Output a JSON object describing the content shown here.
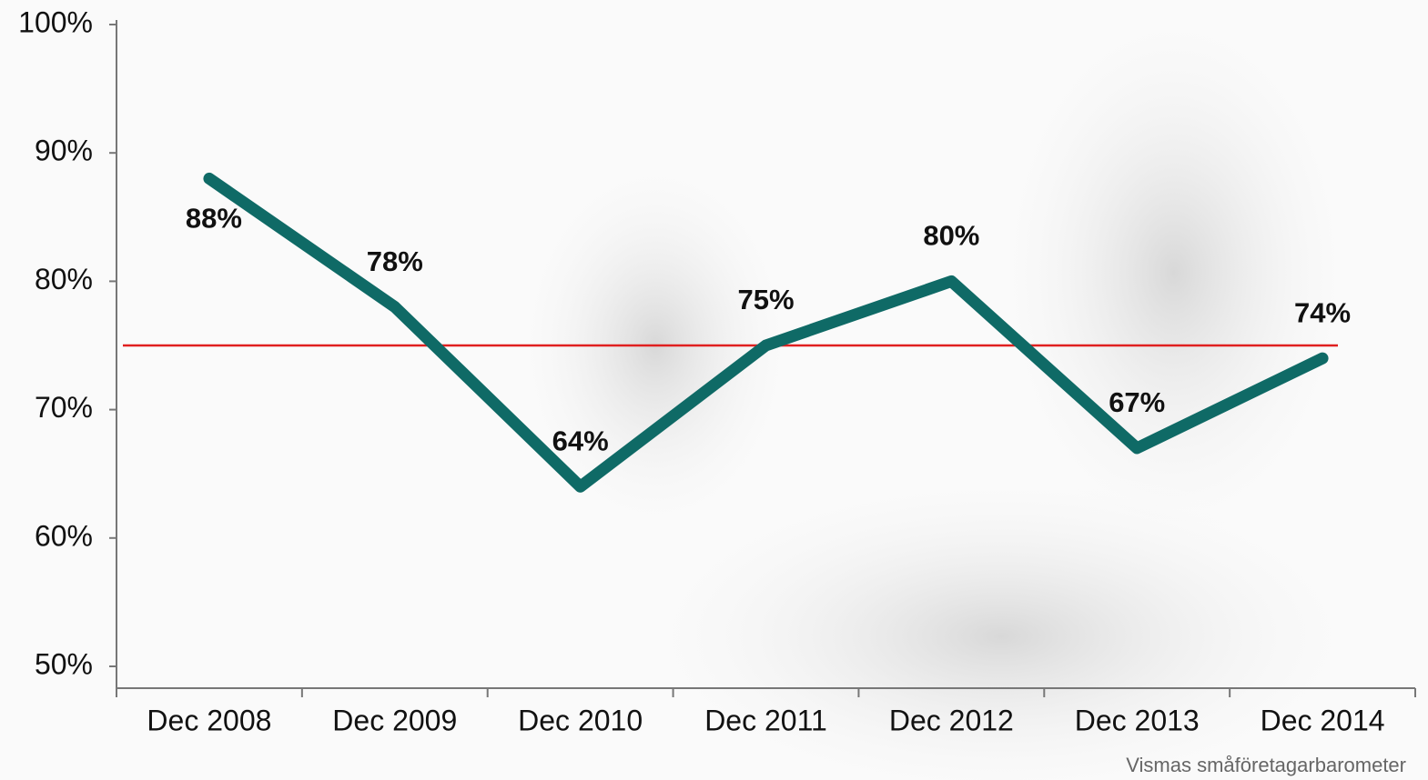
{
  "chart_data": {
    "type": "line",
    "categories": [
      "Dec 2008",
      "Dec 2009",
      "Dec 2010",
      "Dec 2011",
      "Dec 2012",
      "Dec 2013",
      "Dec 2014"
    ],
    "series": [
      {
        "color": "#0f6a66",
        "values": [
          88,
          78,
          64,
          75,
          80,
          67,
          74
        ],
        "value_labels": [
          "88%",
          "78%",
          "64%",
          "75%",
          "80%",
          "67%",
          "74%"
        ]
      }
    ],
    "ylim": [
      48.3,
      100
    ],
    "yticks": [
      {
        "value": 50,
        "label": "50%"
      },
      {
        "value": 60,
        "label": "60%"
      },
      {
        "value": 70,
        "label": "70%"
      },
      {
        "value": 80,
        "label": "80%"
      },
      {
        "value": 90,
        "label": "90%"
      },
      {
        "value": 100,
        "label": "100%"
      }
    ],
    "reference_line": {
      "value": 75,
      "color": "#e02020"
    },
    "source": "Vismas småföretagarbarometer"
  }
}
